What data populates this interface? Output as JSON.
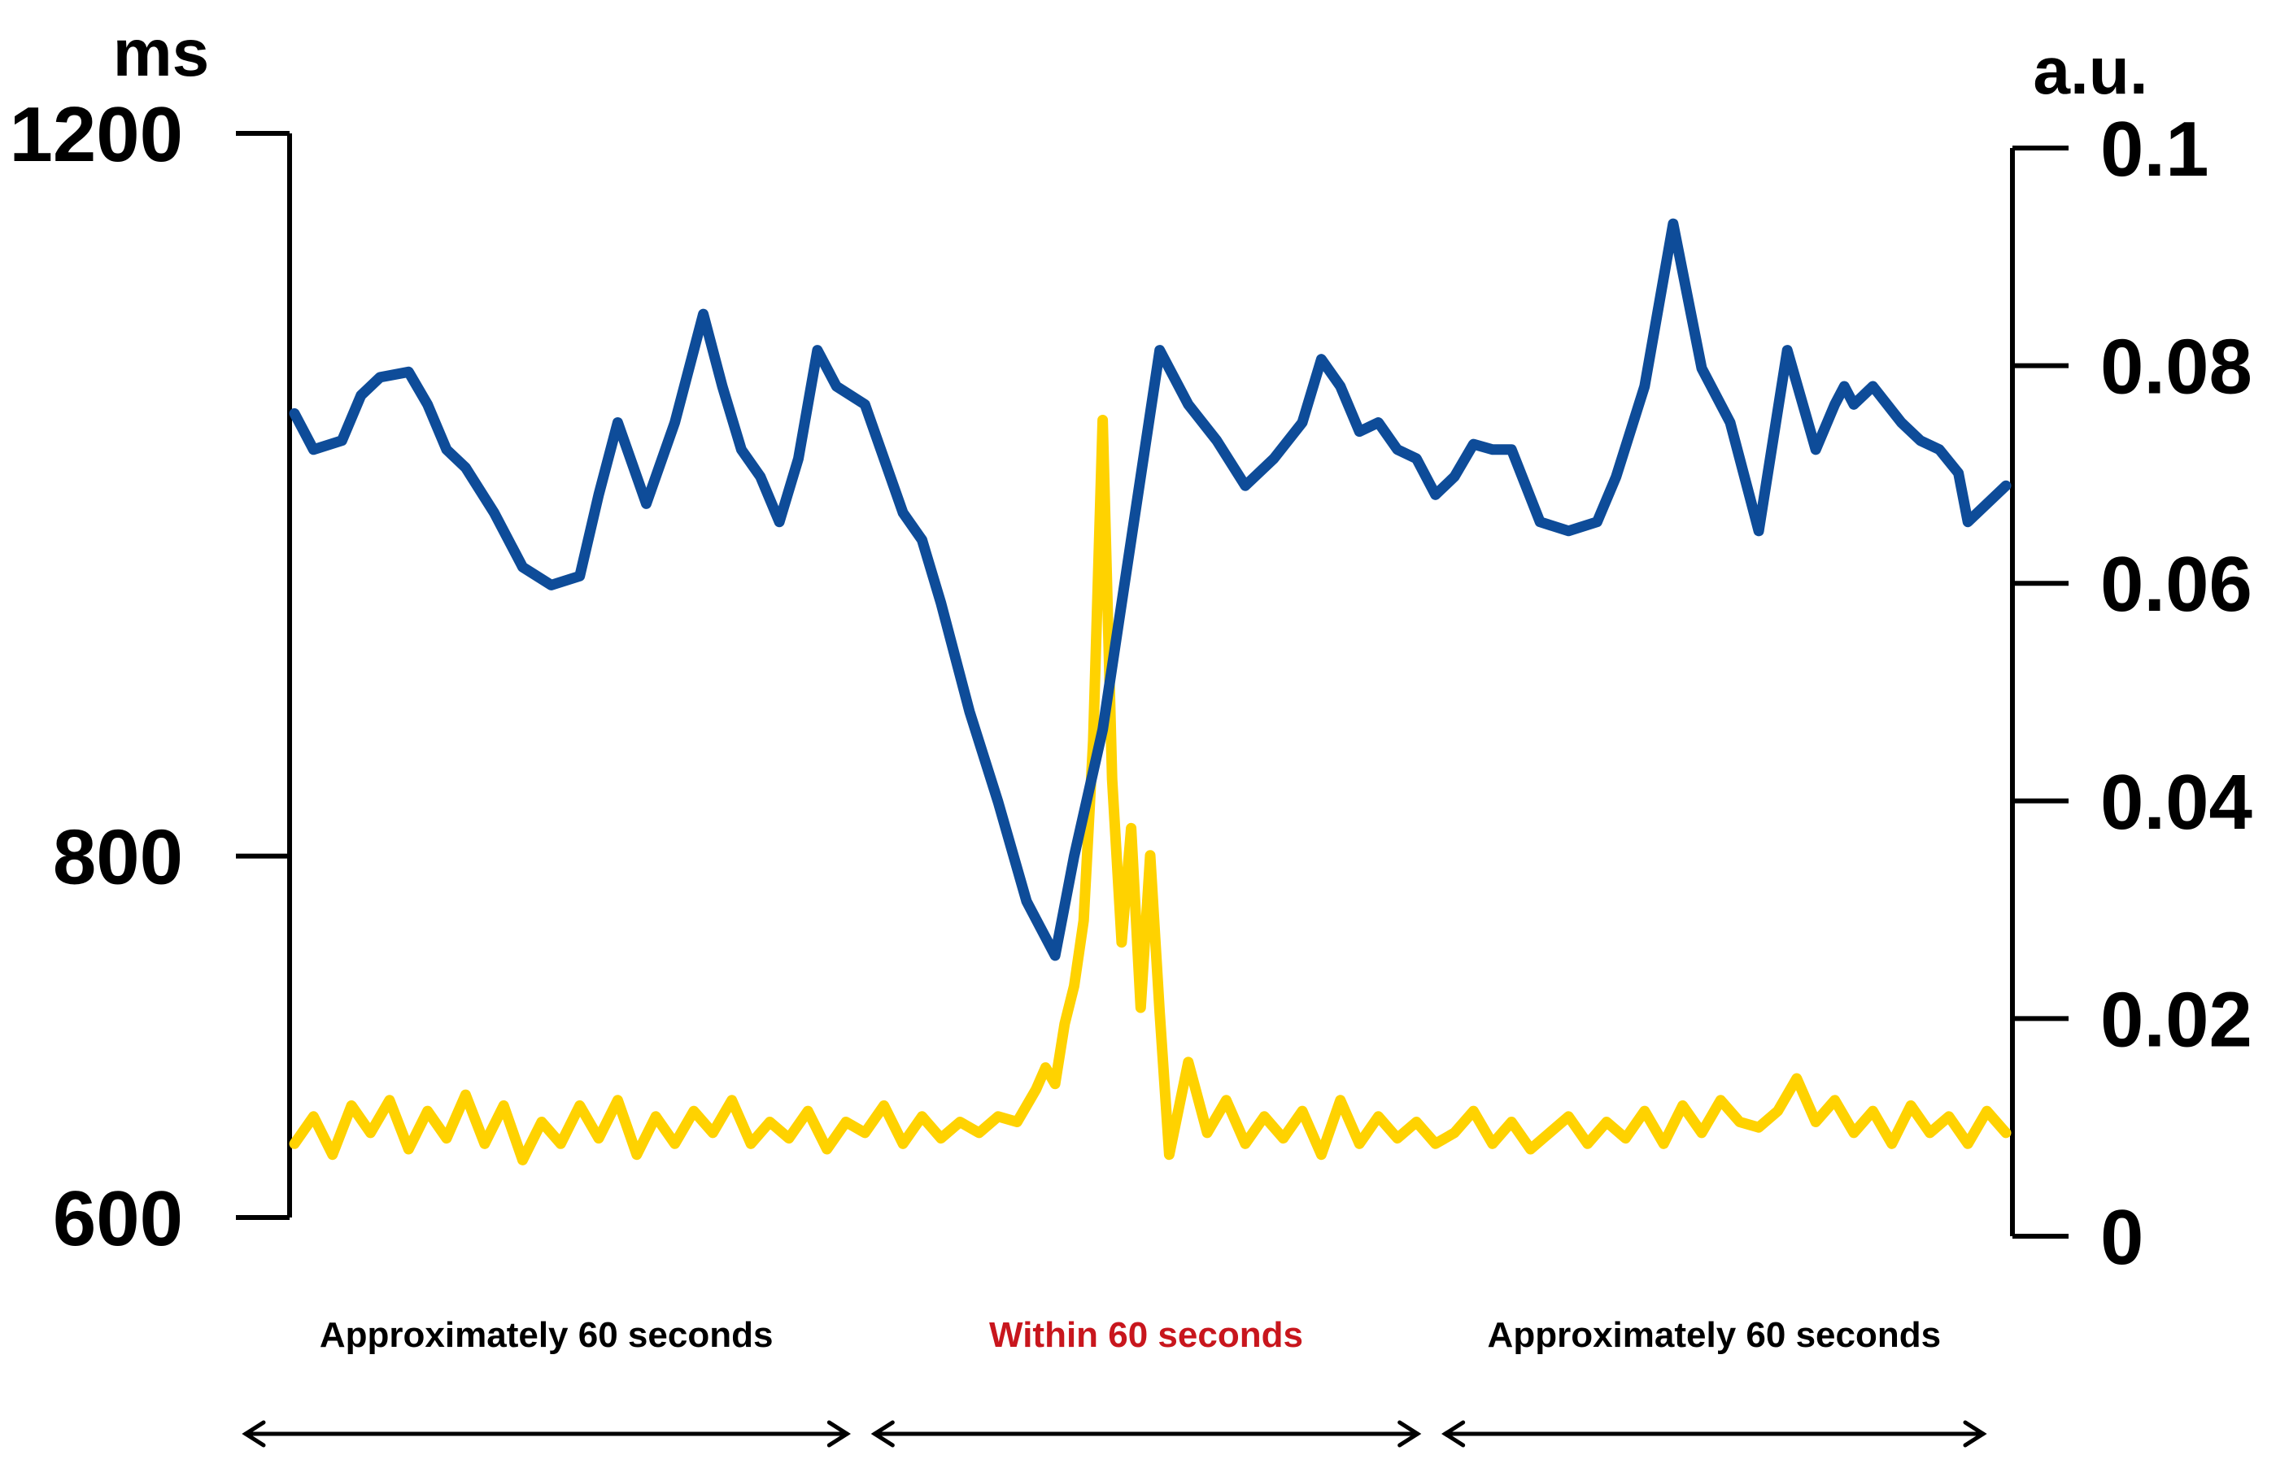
{
  "chart_data": {
    "type": "line",
    "colors": {
      "rri": "#0e4c99",
      "index": "#ffd200",
      "axis": "#000000",
      "highlight": "#c8161d"
    },
    "left_axis": {
      "unit": "ms",
      "ylim": [
        600,
        1200
      ],
      "ticks": [
        600,
        800,
        1200
      ],
      "tick_labels": [
        "600",
        "800",
        "1200"
      ]
    },
    "right_axis": {
      "unit": "a.u.",
      "ylim": [
        0,
        0.1
      ],
      "ticks": [
        0,
        0.02,
        0.04,
        0.06,
        0.08,
        0.1
      ],
      "tick_labels": [
        "0",
        "0.02",
        "0.04",
        "0.06",
        "0.08",
        "0.1"
      ]
    },
    "x_unit": "seconds",
    "xlim": [
      0,
      180
    ],
    "series": [
      {
        "axis": "left",
        "color": "#0e4c99",
        "x": [
          0,
          2,
          5,
          7,
          9,
          12,
          14,
          16,
          18,
          21,
          24,
          27,
          30,
          32,
          34,
          37,
          40,
          43,
          45,
          47,
          49,
          51,
          53,
          55,
          57,
          60,
          62,
          64,
          66,
          68,
          71,
          74,
          77,
          80,
          82,
          85,
          87,
          89,
          91,
          94,
          97,
          100,
          103,
          106,
          108,
          110,
          112,
          114,
          116,
          118,
          120,
          122,
          124,
          126,
          128,
          131,
          134,
          137,
          139,
          142,
          145,
          148,
          151,
          154,
          157,
          160,
          162,
          163,
          164,
          166,
          169,
          171,
          173,
          175,
          176,
          178,
          180
        ],
        "values": [
          1045,
          1025,
          1030,
          1055,
          1065,
          1068,
          1050,
          1025,
          1015,
          990,
          960,
          950,
          955,
          1000,
          1040,
          995,
          1040,
          1100,
          1060,
          1025,
          1010,
          985,
          1020,
          1080,
          1060,
          1050,
          1020,
          990,
          975,
          940,
          880,
          830,
          775,
          745,
          800,
          870,
          940,
          1010,
          1080,
          1050,
          1030,
          1005,
          1020,
          1040,
          1075,
          1060,
          1035,
          1040,
          1025,
          1020,
          1000,
          1010,
          1028,
          1025,
          1025,
          985,
          980,
          985,
          1010,
          1060,
          1150,
          1070,
          1040,
          980,
          1080,
          1025,
          1050,
          1060,
          1050,
          1060,
          1040,
          1030,
          1025,
          1012,
          985,
          995,
          1005
        ]
      },
      {
        "axis": "right",
        "color": "#ffd200",
        "x": [
          0,
          2,
          4,
          6,
          8,
          10,
          12,
          14,
          16,
          18,
          20,
          22,
          24,
          26,
          28,
          30,
          32,
          34,
          36,
          38,
          40,
          42,
          44,
          46,
          48,
          50,
          52,
          54,
          56,
          58,
          60,
          62,
          64,
          66,
          68,
          70,
          72,
          74,
          76,
          78,
          79,
          80,
          81,
          82,
          83,
          84,
          85,
          86,
          87,
          88,
          89,
          90,
          91,
          92,
          94,
          96,
          98,
          100,
          102,
          104,
          106,
          108,
          110,
          112,
          114,
          116,
          118,
          120,
          122,
          124,
          126,
          128,
          130,
          132,
          134,
          136,
          138,
          140,
          142,
          144,
          146,
          148,
          150,
          152,
          154,
          156,
          158,
          160,
          162,
          164,
          166,
          168,
          170,
          172,
          174,
          176,
          178,
          180
        ],
        "values": [
          0.0085,
          0.011,
          0.0075,
          0.012,
          0.0095,
          0.0125,
          0.008,
          0.0115,
          0.009,
          0.013,
          0.0085,
          0.012,
          0.007,
          0.0105,
          0.0085,
          0.012,
          0.009,
          0.0125,
          0.0075,
          0.011,
          0.0085,
          0.0115,
          0.0095,
          0.0125,
          0.0085,
          0.0105,
          0.009,
          0.0115,
          0.008,
          0.0105,
          0.0095,
          0.012,
          0.0085,
          0.011,
          0.009,
          0.0105,
          0.0095,
          0.011,
          0.0105,
          0.0135,
          0.0155,
          0.014,
          0.0195,
          0.023,
          0.029,
          0.0455,
          0.075,
          0.042,
          0.027,
          0.0375,
          0.021,
          0.035,
          0.0205,
          0.0075,
          0.016,
          0.0095,
          0.0125,
          0.0085,
          0.011,
          0.009,
          0.0115,
          0.0075,
          0.0125,
          0.0085,
          0.011,
          0.009,
          0.0105,
          0.0085,
          0.0095,
          0.0115,
          0.0085,
          0.0105,
          0.008,
          0.0095,
          0.011,
          0.0085,
          0.0105,
          0.009,
          0.0115,
          0.0085,
          0.012,
          0.0095,
          0.0125,
          0.0105,
          0.01,
          0.0115,
          0.0145,
          0.0105,
          0.0125,
          0.0095,
          0.0115,
          0.0085,
          0.012,
          0.0095,
          0.011,
          0.0085,
          0.0115,
          0.0095
        ]
      }
    ],
    "periods": [
      {
        "label": "Approximately 60 seconds",
        "color": "#000000",
        "x_start": 0,
        "x_end": 60
      },
      {
        "label": "Within 60 seconds",
        "color": "#c8161d",
        "x_start": 60,
        "x_end": 120
      },
      {
        "label": "Approximately 60 seconds",
        "color": "#000000",
        "x_start": 120,
        "x_end": 180
      }
    ]
  }
}
